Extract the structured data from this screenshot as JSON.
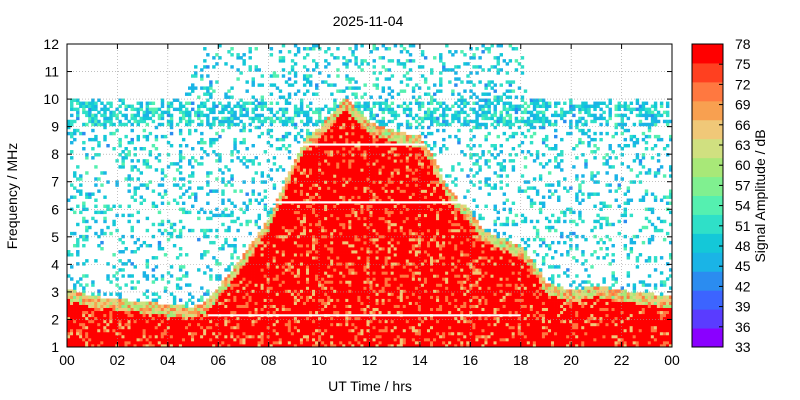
{
  "chart_data": {
    "type": "heatmap",
    "title": "2025-11-04",
    "xlabel": "UT Time / hrs",
    "ylabel": "Frequency / MHz",
    "xlim": [
      0,
      24
    ],
    "ylim": [
      1,
      12
    ],
    "x_ticks": [
      "00",
      "02",
      "04",
      "06",
      "08",
      "10",
      "12",
      "14",
      "16",
      "18",
      "20",
      "22",
      "00"
    ],
    "y_ticks": [
      "1",
      "2",
      "3",
      "4",
      "5",
      "6",
      "7",
      "8",
      "9",
      "10",
      "11",
      "12"
    ],
    "grid": true,
    "colorbar": {
      "label": "Signal Amplitude / dB",
      "range": [
        33,
        78
      ],
      "ticks": [
        "33",
        "36",
        "39",
        "42",
        "45",
        "48",
        "51",
        "54",
        "57",
        "60",
        "63",
        "66",
        "69",
        "72",
        "75",
        "78"
      ],
      "colors": [
        "#8a00ff",
        "#5a3cff",
        "#3c64ff",
        "#2b8cf0",
        "#1ab4e6",
        "#14c8d8",
        "#2fe0c8",
        "#55f0b0",
        "#80f090",
        "#a8e878",
        "#d0e080",
        "#f0c878",
        "#f8a050",
        "#ff7840",
        "#ff4020",
        "#ff0000"
      ]
    },
    "strong_region_upper_mhz": [
      [
        0,
        3.0
      ],
      [
        1,
        2.7
      ],
      [
        2,
        2.6
      ],
      [
        3,
        2.5
      ],
      [
        4,
        2.4
      ],
      [
        5,
        2.3
      ],
      [
        5.5,
        2.5
      ],
      [
        6,
        3.0
      ],
      [
        7,
        4.2
      ],
      [
        8,
        5.5
      ],
      [
        9,
        7.6
      ],
      [
        9.5,
        8.5
      ],
      [
        10,
        8.8
      ],
      [
        10.5,
        9.3
      ],
      [
        11,
        9.9
      ],
      [
        11.5,
        9.5
      ],
      [
        12,
        9.0
      ],
      [
        13,
        8.7
      ],
      [
        14,
        8.5
      ],
      [
        14.5,
        7.8
      ],
      [
        15,
        6.8
      ],
      [
        15.5,
        6.2
      ],
      [
        16,
        5.8
      ],
      [
        16.5,
        5.1
      ],
      [
        17,
        4.9
      ],
      [
        18,
        4.5
      ],
      [
        18.5,
        4.0
      ],
      [
        19,
        3.2
      ],
      [
        20,
        2.9
      ],
      [
        21,
        3.1
      ],
      [
        22,
        2.9
      ],
      [
        23,
        2.8
      ],
      [
        24,
        2.7
      ]
    ],
    "noise_upper_mhz": [
      [
        0,
        10.0
      ],
      [
        4.5,
        10.0
      ],
      [
        5.5,
        12.0
      ],
      [
        18,
        12.0
      ],
      [
        18.3,
        10.0
      ],
      [
        24,
        10.0
      ]
    ],
    "bright_lines_mhz": [
      {
        "from_hr": 9.0,
        "to_hr": 14.2,
        "freq": 8.35
      },
      {
        "from_hr": 7.8,
        "to_hr": 15.8,
        "freq": 6.25
      },
      {
        "from_hr": 5.6,
        "to_hr": 18.0,
        "freq": 2.15
      }
    ]
  }
}
